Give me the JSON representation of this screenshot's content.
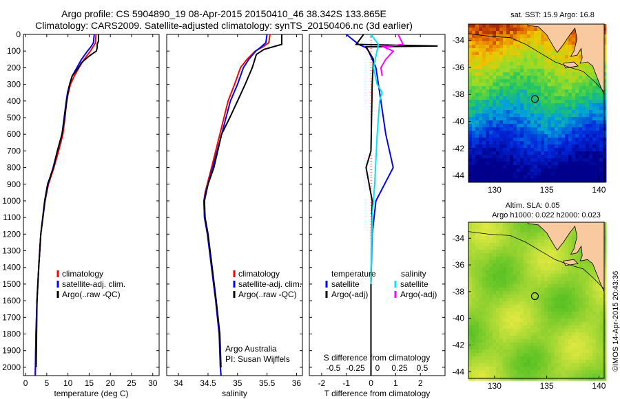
{
  "header": {
    "line1": "Argo profile: CS 5904890_19 08-Apr-2015 20150410_46 38.342S 133.865E",
    "line2": "Climatology: CARS2009. Satellite-adjusted climatology: synTS_20150406.nc (3d earlier)"
  },
  "colors": {
    "climatology": "#ff0000",
    "satellite": "#0000ff",
    "argo": "#000000",
    "sal_satellite": "#00e5ee",
    "sal_argo": "#ff00ff"
  },
  "chart_data": [
    {
      "type": "line",
      "panel": "temperature",
      "xlabel": "temperature (deg C)",
      "ylabel": "",
      "xlim": [
        -0.5,
        31.5
      ],
      "ylim": [
        2050,
        0
      ],
      "xticks": [
        0,
        5,
        10,
        15,
        20,
        25,
        30
      ],
      "yticks": [
        0,
        100,
        200,
        300,
        400,
        500,
        600,
        700,
        800,
        900,
        1000,
        1100,
        1200,
        1300,
        1400,
        1500,
        1600,
        1700,
        1800,
        1900,
        2000
      ],
      "legend": [
        "climatology",
        "satellite-adj. clim.",
        "Argo(..raw -QC)"
      ],
      "series": [
        {
          "name": "climatology",
          "color": "#ff0000",
          "x": [
            16.6,
            16.5,
            15.9,
            15.3,
            13.8,
            12.6,
            11.5,
            10.6,
            10.1,
            9.7,
            9.3,
            8.8,
            7.8,
            6.7,
            5.4,
            4.6,
            3.6,
            3.1,
            2.7,
            2.45,
            2.3
          ],
          "y": [
            0,
            50,
            75,
            100,
            150,
            200,
            250,
            300,
            350,
            400,
            500,
            600,
            700,
            800,
            900,
            1000,
            1200,
            1400,
            1600,
            1800,
            2050
          ]
        },
        {
          "name": "satellite-adj. clim.",
          "color": "#0000ff",
          "x": [
            16.2,
            16.0,
            15.4,
            14.6,
            13.2,
            12.1,
            11.0,
            10.4,
            9.9,
            9.6,
            9.1,
            8.6,
            7.5,
            6.5,
            5.3,
            4.6,
            3.6,
            3.1,
            2.7,
            2.45,
            2.3
          ],
          "y": [
            0,
            50,
            75,
            100,
            150,
            200,
            250,
            300,
            350,
            400,
            500,
            600,
            700,
            800,
            900,
            1000,
            1200,
            1400,
            1600,
            1800,
            2050
          ]
        },
        {
          "name": "Argo(..raw -QC)",
          "color": "#000000",
          "x": [
            17.2,
            17.2,
            16.9,
            16.9,
            16.7,
            15.0,
            13.2,
            12.5,
            11.0,
            10.4,
            10.0,
            9.2,
            8.6,
            7.5,
            6.6,
            5.2,
            4.5,
            3.6,
            3.1,
            2.7,
            2.5
          ],
          "y": [
            0,
            40,
            60,
            80,
            100,
            130,
            170,
            200,
            250,
            300,
            350,
            500,
            600,
            700,
            800,
            900,
            1000,
            1200,
            1400,
            1600,
            2000
          ]
        }
      ]
    },
    {
      "type": "line",
      "panel": "salinity",
      "xlabel": "salinity",
      "xlim": [
        33.8,
        36.1
      ],
      "ylim": [
        2050,
        0
      ],
      "xticks": [
        34,
        34.5,
        35,
        35.5,
        36
      ],
      "legend": [
        "climatology",
        "satellite-adj. clim.",
        "Argo(..raw -QC)"
      ],
      "annotation": [
        "Argo Australia",
        "PI: Susan Wijffels"
      ],
      "series": [
        {
          "name": "climatology",
          "color": "#ff0000",
          "x": [
            35.55,
            35.53,
            35.43,
            35.3,
            35.16,
            35.05,
            34.95,
            34.84,
            34.7,
            34.56,
            34.45,
            34.43,
            34.44,
            34.49,
            34.56,
            34.63,
            34.69,
            34.71,
            34.72
          ],
          "y": [
            0,
            50,
            75,
            100,
            150,
            200,
            300,
            400,
            600,
            800,
            950,
            1000,
            1100,
            1200,
            1400,
            1600,
            1800,
            2000,
            2050
          ]
        },
        {
          "name": "satellite-adj. clim.",
          "color": "#0000ff",
          "x": [
            35.5,
            35.48,
            35.4,
            35.31,
            35.19,
            35.1,
            35.0,
            34.88,
            34.73,
            34.58,
            34.46,
            34.43,
            34.44,
            34.49,
            34.56,
            34.63,
            34.69,
            34.71,
            34.72
          ],
          "y": [
            0,
            50,
            75,
            100,
            150,
            200,
            300,
            400,
            600,
            800,
            950,
            1000,
            1100,
            1200,
            1400,
            1600,
            1800,
            2000,
            2050
          ]
        },
        {
          "name": "Argo(..raw -QC)",
          "color": "#000000",
          "x": [
            35.75,
            35.75,
            35.6,
            35.45,
            35.32,
            35.25,
            35.13,
            35.0,
            34.87,
            34.73,
            34.6,
            34.5,
            34.44,
            34.45,
            34.5,
            34.57,
            34.64,
            34.7,
            34.72
          ],
          "y": [
            0,
            60,
            75,
            90,
            120,
            200,
            300,
            400,
            500,
            600,
            800,
            900,
            1000,
            1100,
            1200,
            1400,
            1600,
            1800,
            2000
          ]
        }
      ]
    },
    {
      "type": "line",
      "panel": "difference",
      "xlabel": "T difference from climatology",
      "x2label": "S difference from climatology",
      "xlim": [
        -2.5,
        3.0
      ],
      "ylim": [
        2050,
        0
      ],
      "xticks": [
        -2,
        -1,
        0,
        1,
        2
      ],
      "x2ticks": [
        -0.5,
        -0.25,
        0,
        0.25,
        0.5
      ],
      "legend_temperature": [
        "temperature",
        "satellite",
        "Argo(-adj)"
      ],
      "legend_salinity": [
        "salinity",
        "satellite",
        "Argo(-adj)"
      ],
      "series": [
        {
          "name": "temperature satellite",
          "color": "#0000ff",
          "x": [
            -1.0,
            -0.5,
            -0.2,
            -0.1,
            0.2,
            0.4,
            0.6,
            0.9,
            0.55,
            0.2,
            0.05,
            0.0,
            0.0
          ],
          "y": [
            0,
            60,
            80,
            100,
            200,
            400,
            600,
            800,
            900,
            1000,
            1200,
            1500,
            2050
          ]
        },
        {
          "name": "temperature Argo(-adj)",
          "color": "#000000",
          "x": [
            -0.3,
            -0.6,
            2.7,
            -0.2,
            0.1,
            0.05,
            0.0,
            -0.2,
            0.05,
            0.0,
            0.0
          ],
          "y": [
            0,
            60,
            70,
            75,
            150,
            300,
            700,
            800,
            1000,
            1500,
            2050
          ]
        },
        {
          "name": "salinity satellite",
          "color": "#00e5ee",
          "x": [
            0.0,
            0.3,
            0.1,
            0.25,
            0.45,
            0.35,
            0.25,
            0.15,
            0.05,
            0.0
          ],
          "y": [
            0,
            60,
            200,
            300,
            350,
            400,
            600,
            900,
            1100,
            1500
          ]
        },
        {
          "name": "salinity Argo(-adj)",
          "color": "#ff00ff",
          "x": [
            1.1,
            1.3,
            0.5,
            0.9,
            0.6,
            0.4,
            0.45
          ],
          "y": [
            0,
            60,
            75,
            100,
            150,
            200,
            250
          ]
        }
      ]
    },
    {
      "type": "heatmap",
      "panel": "sst-map",
      "title": "sat. SST: 15.9 Argo: 16.8",
      "xlim": [
        127.5,
        140.5
      ],
      "ylim": [
        -44.5,
        -32.8
      ],
      "xticks": [
        130,
        135,
        140
      ],
      "yticks": [
        -34,
        -36,
        -38,
        -40,
        -42,
        -44
      ],
      "marker": {
        "lon": 133.865,
        "lat": -38.342
      }
    },
    {
      "type": "heatmap",
      "panel": "sla-map",
      "title": "Altim. SLA: 0.05",
      "subtitle": "Argo h1000: 0.022 h2000: 0.023",
      "xlim": [
        127.5,
        140.5
      ],
      "ylim": [
        -44.5,
        -32.8
      ],
      "xticks": [
        130,
        135,
        140
      ],
      "yticks": [
        -34,
        -36,
        -38,
        -40,
        -42,
        -44
      ],
      "marker": {
        "lon": 133.865,
        "lat": -38.342
      }
    }
  ],
  "credit": "©IMOS 14-Apr-2015 20:43:36"
}
